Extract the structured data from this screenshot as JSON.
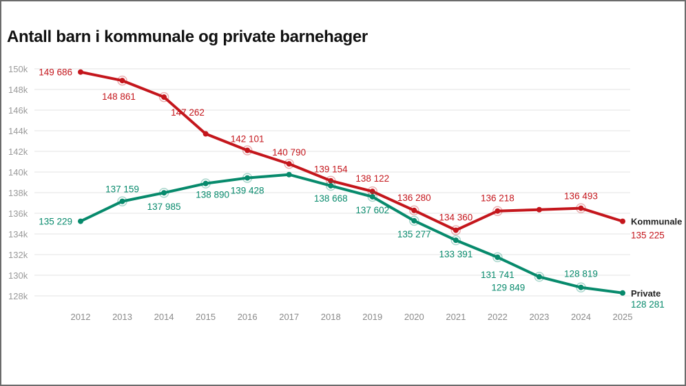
{
  "chart_data": {
    "type": "line",
    "title": "Antall barn i kommunale og private barnehager",
    "xlabel": "",
    "ylabel": "",
    "x": [
      2012,
      2013,
      2014,
      2015,
      2016,
      2017,
      2018,
      2019,
      2020,
      2021,
      2022,
      2023,
      2024,
      2025
    ],
    "x_tick_labels": [
      "2012",
      "2013",
      "2014",
      "2015",
      "2016",
      "2017",
      "2018",
      "2019",
      "2020",
      "2021",
      "2022",
      "2023",
      "2024",
      "2025"
    ],
    "ylim": [
      128000,
      150000
    ],
    "y_ticks": [
      128000,
      130000,
      132000,
      134000,
      136000,
      138000,
      140000,
      142000,
      144000,
      146000,
      148000,
      150000
    ],
    "y_tick_labels": [
      "128k",
      "130k",
      "132k",
      "134k",
      "136k",
      "138k",
      "140k",
      "142k",
      "144k",
      "146k",
      "148k",
      "150k"
    ],
    "grid": true,
    "legend": "end-of-line labels",
    "series": [
      {
        "name": "Kommunale",
        "color": "#c4161c",
        "values": [
          149686,
          148861,
          147262,
          143700,
          142101,
          140790,
          139154,
          138122,
          136280,
          134360,
          136218,
          136350,
          136493,
          135225
        ],
        "labels": [
          "149 686",
          "148 861",
          "147 262",
          null,
          "142 101",
          "140 790",
          "139 154",
          "138 122",
          "136 280",
          "134 360",
          "136 218",
          null,
          "136 493",
          "135 225"
        ]
      },
      {
        "name": "Private",
        "color": "#078a6c",
        "values": [
          135229,
          137159,
          137985,
          138890,
          139428,
          139750,
          138668,
          137602,
          135277,
          133391,
          131741,
          129849,
          128819,
          128281
        ],
        "labels": [
          "135 229",
          "137 159",
          "137 985",
          "138 890",
          "139 428",
          null,
          "138 668",
          "137 602",
          "135 277",
          "133 391",
          "131 741",
          "129 849",
          "128 819",
          "128 281"
        ]
      }
    ]
  }
}
